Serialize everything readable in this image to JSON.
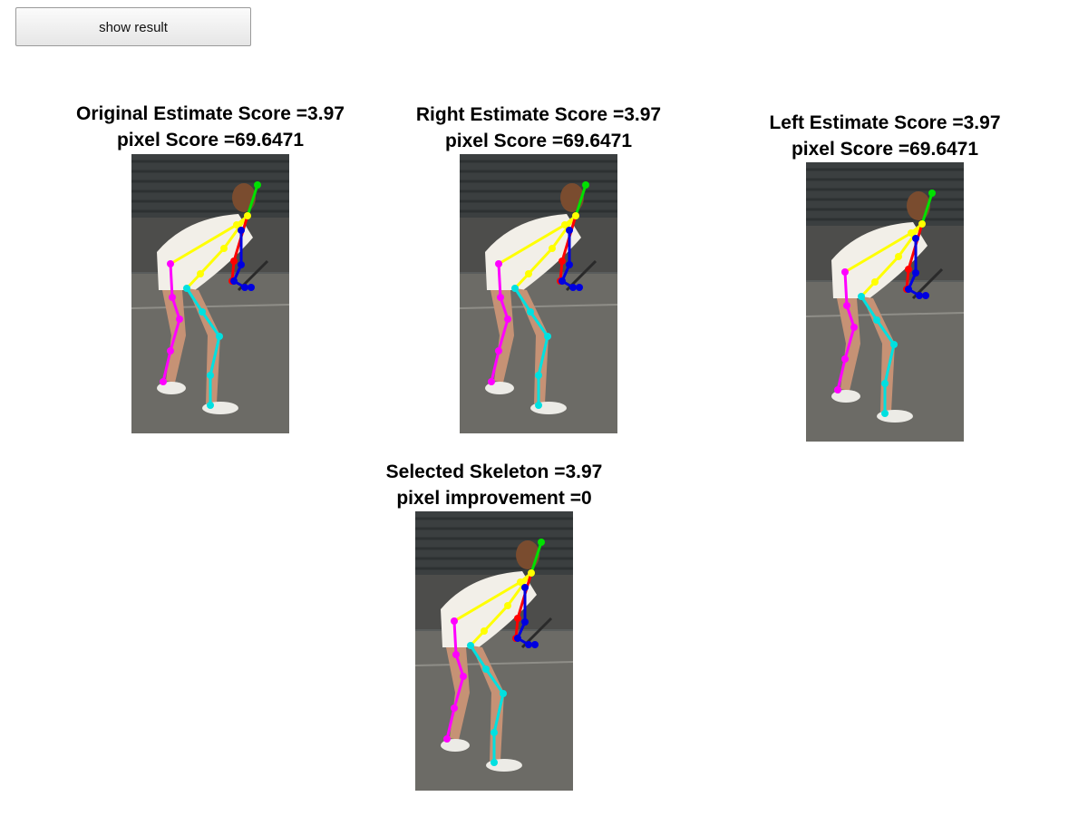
{
  "toolbar": {
    "show_result_label": "show result"
  },
  "panels": [
    {
      "id": "original",
      "line1": "Original Estimate Score =3.97",
      "line2": "pixel Score =69.6471"
    },
    {
      "id": "right",
      "line1": "Right Estimate Score =3.97",
      "line2": "pixel Score =69.6471"
    },
    {
      "id": "left",
      "line1": "Left Estimate Score =3.97",
      "line2": "pixel Score =69.6471"
    },
    {
      "id": "selected",
      "line1": "Selected Skeleton =3.97",
      "line2": "pixel improvement =0"
    }
  ],
  "skeleton_colors": {
    "head": "#00e000",
    "torso_arm": "#ffff00",
    "right_arm": "#ff0000",
    "left_forearm": "#0000e0",
    "right_leg": "#ff00ff",
    "left_leg": "#00e0e0"
  }
}
